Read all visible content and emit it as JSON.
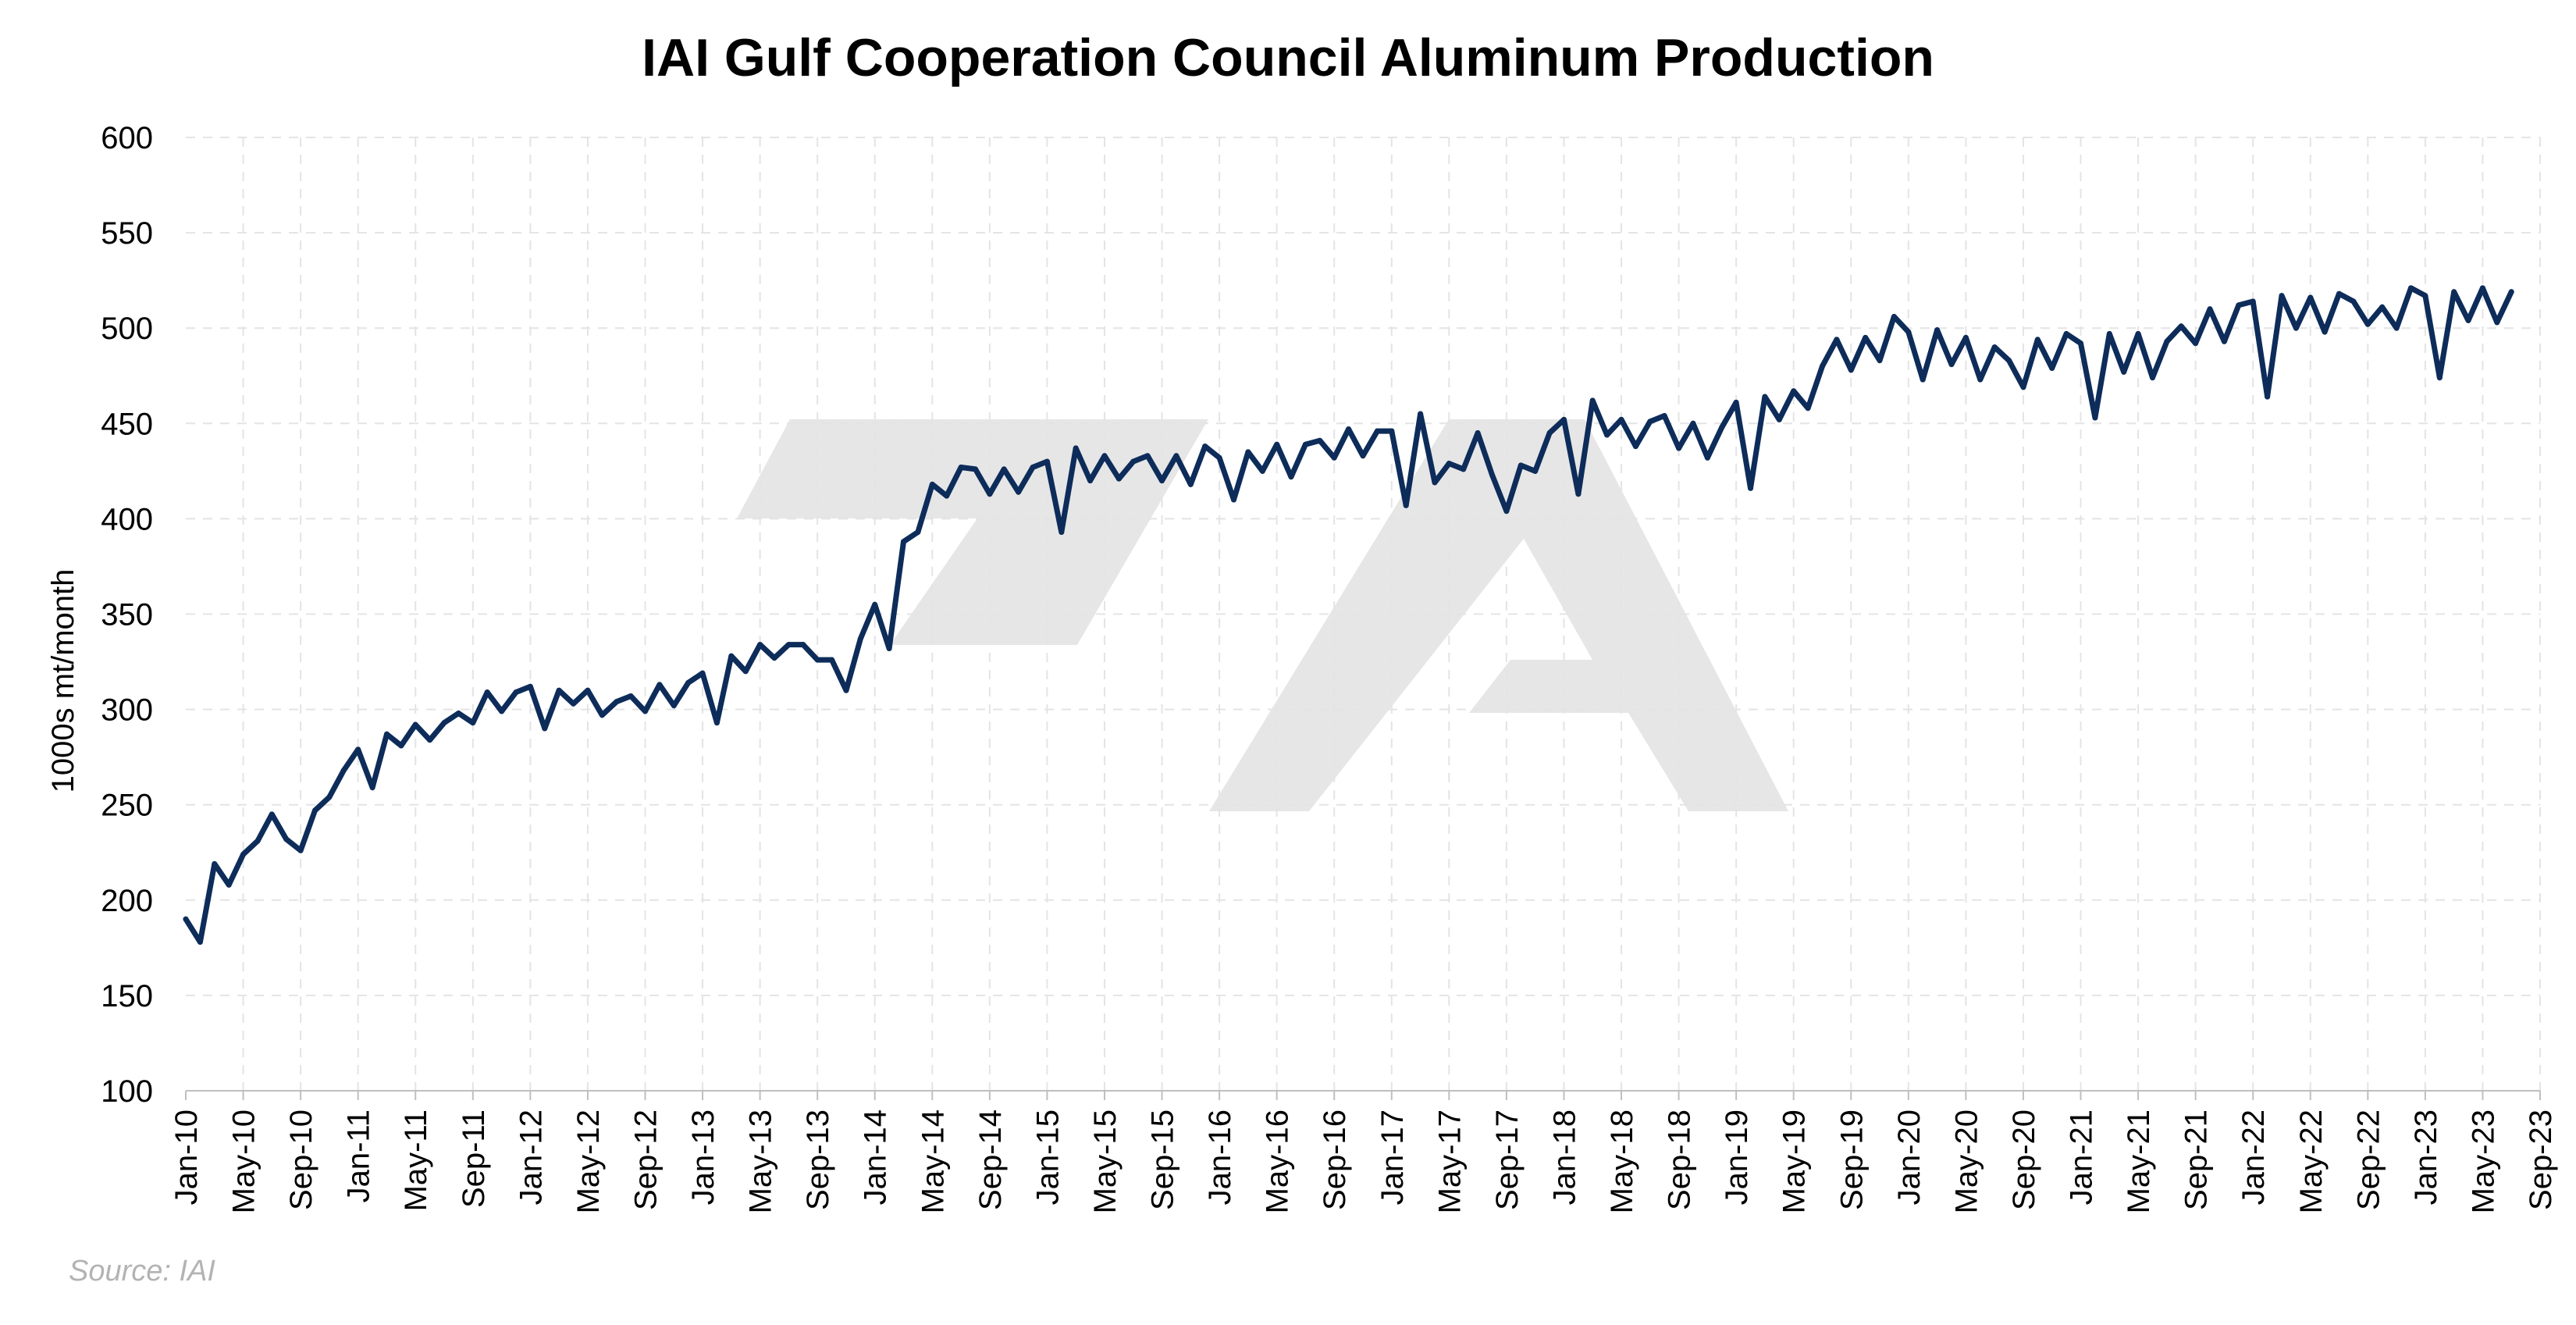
{
  "chart_data": {
    "type": "line",
    "title": "IAI Gulf Cooperation Council Aluminum Production",
    "ylabel": "1000s mt/month",
    "xlabel": "",
    "ylim": [
      100,
      600
    ],
    "yticks": [
      100,
      150,
      200,
      250,
      300,
      350,
      400,
      450,
      500,
      550,
      600
    ],
    "xlim": [
      "2010-01",
      "2023-09"
    ],
    "xtick_labels": [
      "Jan-10",
      "May-10",
      "Sep-10",
      "Jan-11",
      "May-11",
      "Sep-11",
      "Jan-12",
      "May-12",
      "Sep-12",
      "Jan-13",
      "May-13",
      "Sep-13",
      "Jan-14",
      "May-14",
      "Sep-14",
      "Jan-15",
      "May-15",
      "Sep-15",
      "Jan-16",
      "May-16",
      "Sep-16",
      "Jan-17",
      "May-17",
      "Sep-17",
      "Jan-18",
      "May-18",
      "Sep-18",
      "Jan-19",
      "May-19",
      "Sep-19",
      "Jan-20",
      "May-20",
      "Sep-20",
      "Jan-21",
      "May-21",
      "Sep-21",
      "Jan-22",
      "May-22",
      "Sep-22",
      "Jan-23",
      "May-23",
      "Sep-23"
    ],
    "grid": true,
    "line_color": "#0d2c5a",
    "x_start": "2010-01",
    "x_frequency": "monthly",
    "series": [
      {
        "values": [
          190,
          178,
          219,
          208,
          224,
          231,
          245,
          232,
          226,
          247,
          254,
          268,
          279,
          259,
          287,
          281,
          292,
          284,
          293,
          298,
          293,
          309,
          299,
          309,
          312,
          290,
          310,
          303,
          310,
          297,
          304,
          307,
          299,
          313,
          302,
          314,
          319,
          293,
          328,
          320,
          334,
          327,
          334,
          334,
          326,
          326,
          310,
          337,
          355,
          332,
          388,
          393,
          418,
          412,
          427,
          426,
          413,
          426,
          414,
          427,
          430,
          393,
          437,
          420,
          433,
          421,
          430,
          433,
          420,
          433,
          418,
          438,
          432,
          410,
          435,
          425,
          439,
          422,
          439,
          441,
          432,
          447,
          433,
          446,
          446,
          407,
          455,
          419,
          429,
          426,
          445,
          423,
          404,
          428,
          425,
          445,
          452,
          413,
          462,
          444,
          452,
          438,
          451,
          454,
          437,
          450,
          432,
          448,
          461,
          416,
          464,
          452,
          467,
          458,
          480,
          494,
          478,
          495,
          483,
          506,
          498,
          473,
          499,
          481,
          495,
          473,
          490,
          483,
          469,
          494,
          479,
          497,
          492,
          453,
          497,
          477,
          497,
          474,
          493,
          501,
          492,
          510,
          493,
          512,
          514,
          464,
          517,
          500,
          516,
          498,
          518,
          514,
          502,
          511,
          500,
          521,
          517,
          474,
          519,
          504,
          521,
          503,
          519
        ]
      }
    ]
  },
  "source_note": "Source: IAI",
  "watermark": "logo-watermark"
}
